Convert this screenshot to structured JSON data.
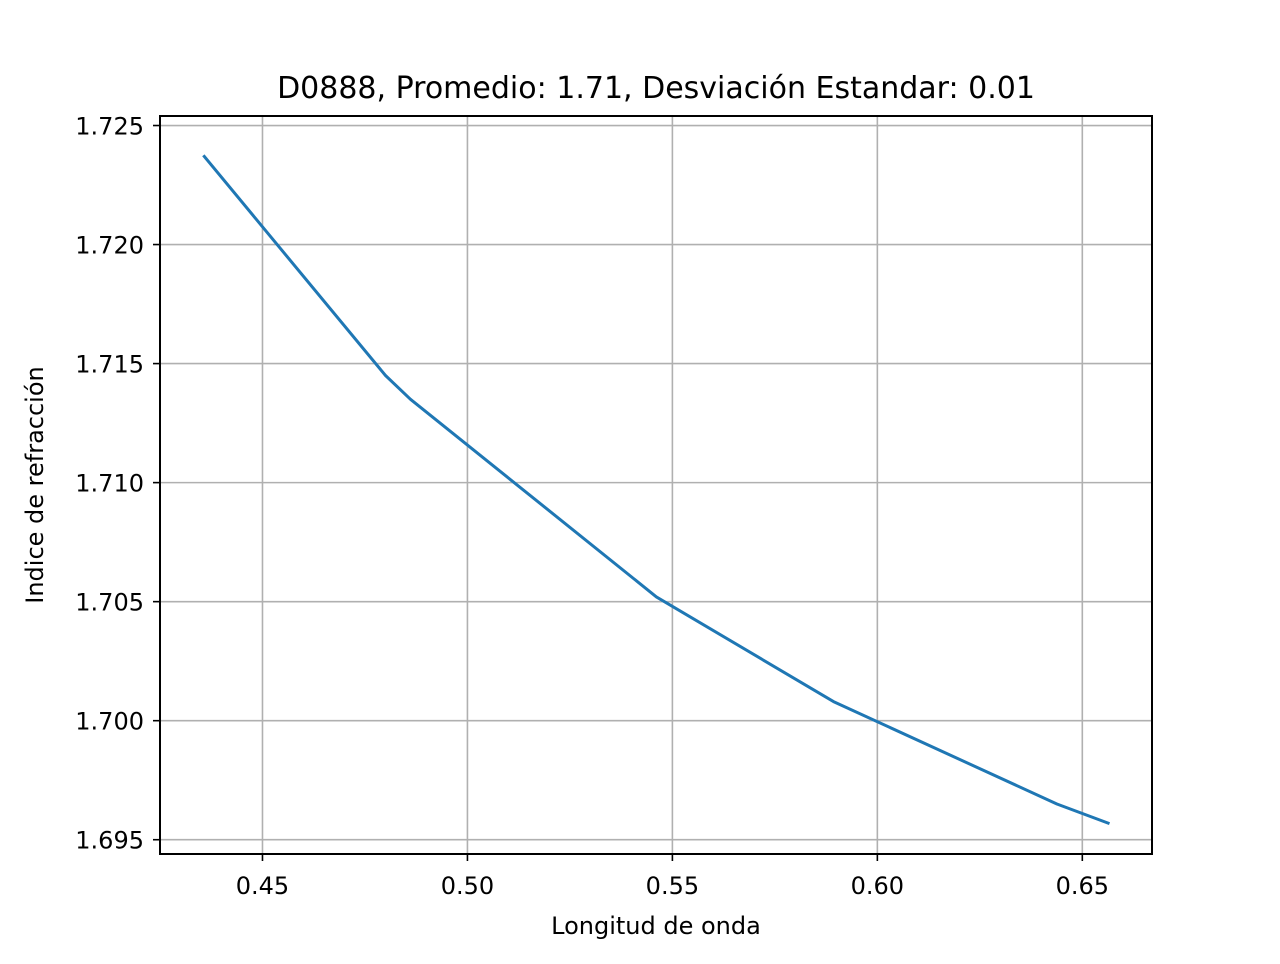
{
  "chart_data": {
    "type": "line",
    "title": "D0888, Promedio: 1.71, Desviación Estandar: 0.01",
    "xlabel": "Longitud de onda",
    "ylabel": "Indice de refracción",
    "xlim": [
      0.425,
      0.667
    ],
    "ylim": [
      1.6944,
      1.7254
    ],
    "x_ticks": [
      0.45,
      0.5,
      0.55,
      0.6,
      0.65
    ],
    "x_tick_labels": [
      "0.45",
      "0.50",
      "0.55",
      "0.60",
      "0.65"
    ],
    "y_ticks": [
      1.695,
      1.7,
      1.705,
      1.71,
      1.715,
      1.72,
      1.725
    ],
    "y_tick_labels": [
      "1.695",
      "1.700",
      "1.705",
      "1.710",
      "1.715",
      "1.720",
      "1.725"
    ],
    "grid": true,
    "series": [
      {
        "color": "#1f77b4",
        "x": [
          0.4358,
          0.48,
          0.4861,
          0.5461,
          0.5893,
          0.6438,
          0.6563
        ],
        "y": [
          1.7237,
          1.7145,
          1.7135,
          1.7052,
          1.7008,
          1.6965,
          1.6957
        ]
      }
    ]
  }
}
